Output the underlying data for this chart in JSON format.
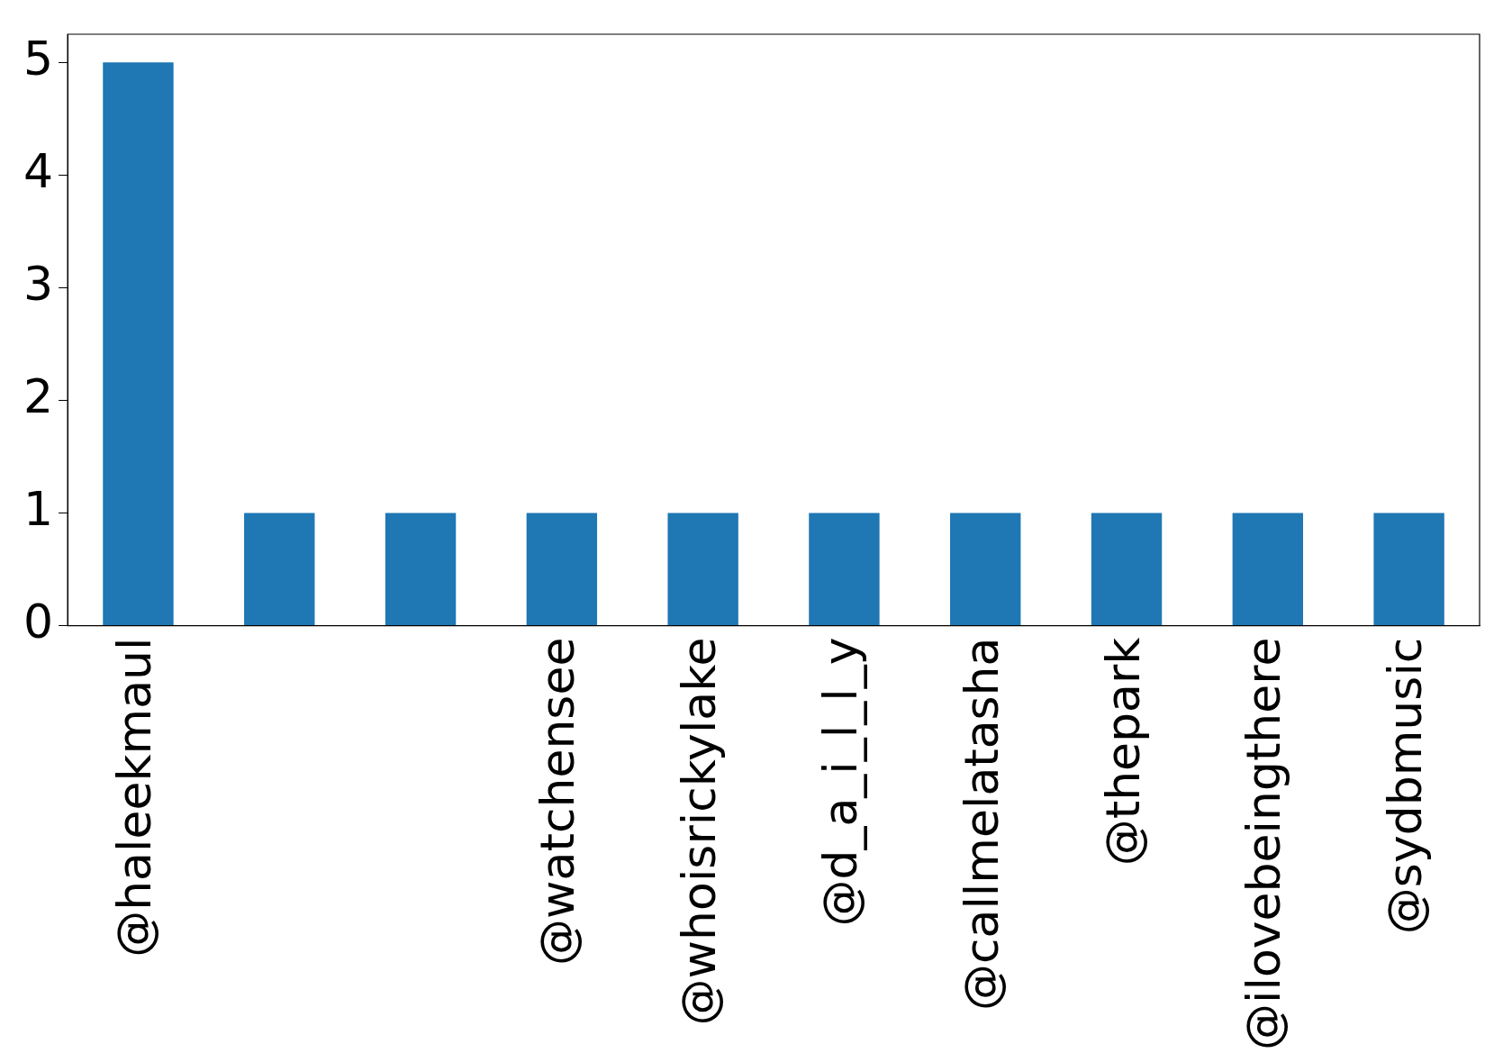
{
  "chart_data": {
    "type": "bar",
    "categories": [
      "@haleekmaul",
      null,
      null,
      "@watchensee",
      "@whoisrickylake",
      "@d_a_i_l_l_y",
      "@callmelatasha",
      "@thepark",
      "@ilovebeingthere",
      "@sydbmusic"
    ],
    "values": [
      5,
      1,
      1,
      1,
      1,
      1,
      1,
      1,
      1,
      1
    ],
    "color": "#1f77b4",
    "ylim": [
      0,
      5.25
    ],
    "yticks": [
      0,
      1,
      2,
      3,
      4,
      5
    ],
    "grid": false
  }
}
